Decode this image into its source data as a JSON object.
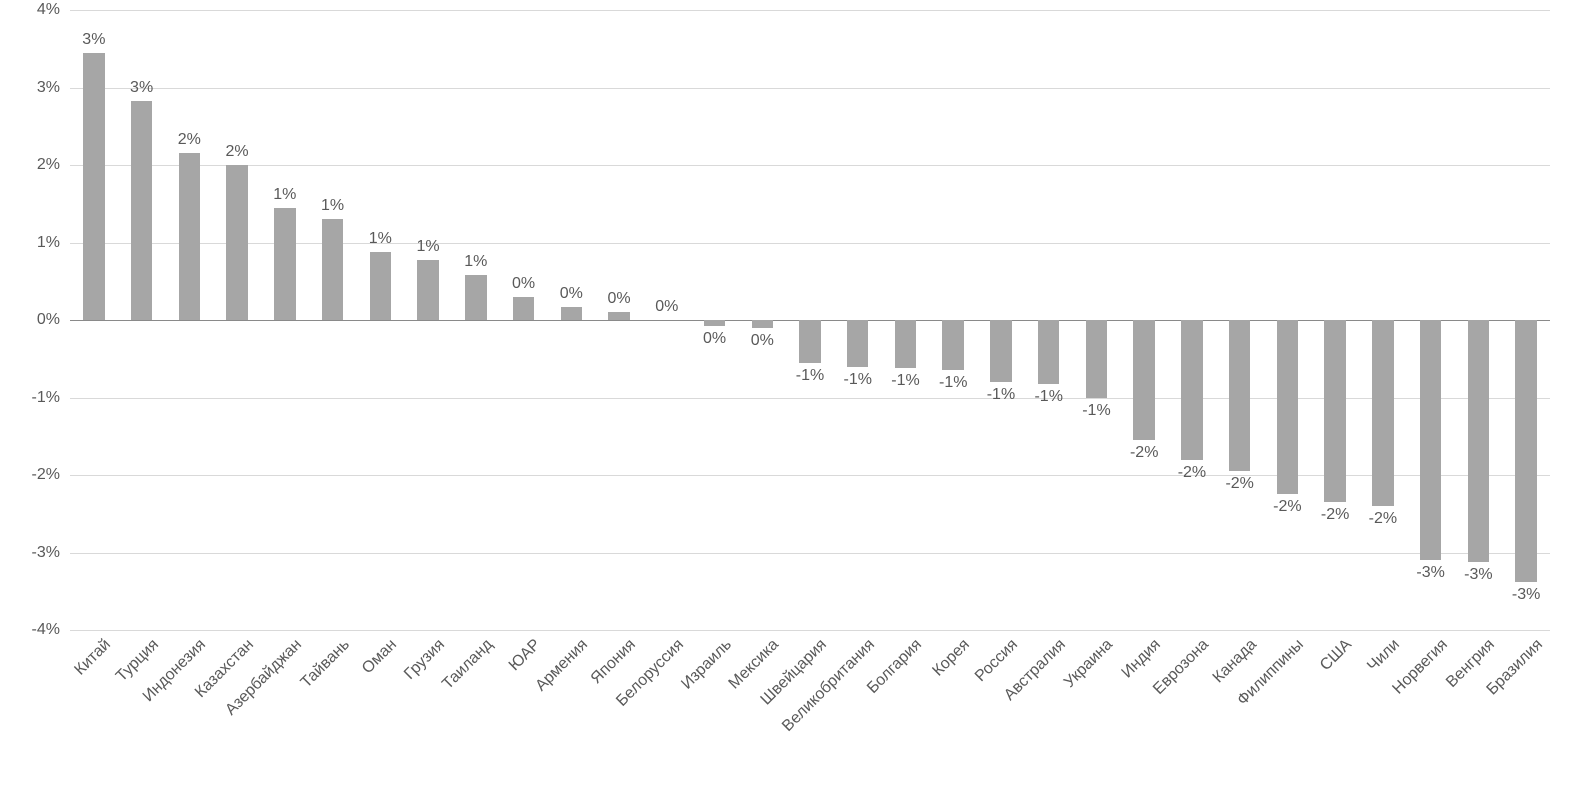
{
  "chart": {
    "type": "bar",
    "background_color": "#ffffff",
    "grid_color": "#d9d9d9",
    "zero_line_color": "#8a8a8a",
    "bar_color": "#a6a6a6",
    "label_color": "#595959",
    "tick_label_color": "#595959",
    "x_label_color": "#595959",
    "font_family": "Segoe UI, Arial, sans-serif",
    "tick_fontsize": 16,
    "datalabel_fontsize": 16,
    "xlabel_fontsize": 16,
    "bar_width_ratio": 0.45,
    "x_label_rotation_deg": -45,
    "ymin": -4,
    "ymax": 4,
    "ytick_step": 1,
    "ytick_labels": [
      "-4%",
      "-3%",
      "-2%",
      "-1%",
      "0%",
      "1%",
      "2%",
      "3%",
      "4%"
    ],
    "categories": [
      "Китай",
      "Турция",
      "Индонезия",
      "Казахстан",
      "Азербайджан",
      "Тайвань",
      "Оман",
      "Грузия",
      "Таиланд",
      "ЮАР",
      "Армения",
      "Япония",
      "Белоруссия",
      "Израиль",
      "Мексика",
      "Швейцария",
      "Великобритания",
      "Болгария",
      "Корея",
      "Россия",
      "Австралия",
      "Украина",
      "Индия",
      "Еврозона",
      "Канада",
      "Филиппины",
      "США",
      "Чили",
      "Норвегия",
      "Венгрия",
      "Бразилия"
    ],
    "values": [
      3.45,
      2.82,
      2.15,
      2.0,
      1.45,
      1.3,
      0.88,
      0.78,
      0.58,
      0.3,
      0.17,
      0.1,
      0.0,
      -0.08,
      -0.1,
      -0.55,
      -0.6,
      -0.62,
      -0.65,
      -0.8,
      -0.82,
      -1.0,
      -1.55,
      -1.8,
      -1.95,
      -2.25,
      -2.35,
      -2.4,
      -3.1,
      -3.12,
      -3.38
    ],
    "data_labels": [
      "3%",
      "3%",
      "2%",
      "2%",
      "1%",
      "1%",
      "1%",
      "1%",
      "1%",
      "0%",
      "0%",
      "0%",
      "0%",
      "0%",
      "0%",
      "-1%",
      "-1%",
      "-1%",
      "-1%",
      "-1%",
      "-1%",
      "-1%",
      "-2%",
      "-2%",
      "-2%",
      "-2%",
      "-2%",
      "-2%",
      "-3%",
      "-3%",
      "-3%"
    ]
  }
}
